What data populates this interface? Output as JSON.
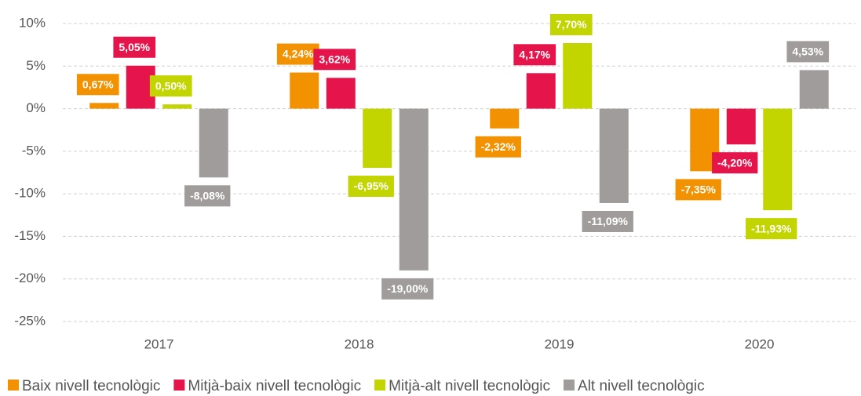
{
  "chart_data": {
    "type": "bar",
    "categories": [
      "2017",
      "2018",
      "2019",
      "2020"
    ],
    "series": [
      {
        "name": "Baix nivell tecnològic",
        "color": "#f39200",
        "values": [
          0.67,
          4.24,
          -2.32,
          -7.35
        ],
        "value_labels": [
          "0,67%",
          "4,24%",
          "-2,32%",
          "-7,35%"
        ]
      },
      {
        "name": "Mitjà-baix nivell tecnològic",
        "color": "#e5154b",
        "values": [
          5.05,
          3.62,
          4.17,
          -4.2
        ],
        "value_labels": [
          "5,05%",
          "3,62%",
          "4,17%",
          "-4,20%"
        ]
      },
      {
        "name": "Mitjà-alt nivell tecnològic",
        "color": "#c2d500",
        "values": [
          0.5,
          -6.95,
          7.7,
          -11.93
        ],
        "value_labels": [
          "0,50%",
          "-6,95%",
          "7,70%",
          "-11,93%"
        ]
      },
      {
        "name": "Alt nivell tecnològic",
        "color": "#a19c9c",
        "values": [
          -8.08,
          -19.0,
          -11.09,
          4.53
        ],
        "value_labels": [
          "-8,08%",
          "-19,00%",
          "-11,09%",
          "4,53%"
        ]
      }
    ],
    "ylim": [
      -25,
      10
    ],
    "yticks": [
      {
        "value": -25,
        "label": "-25%"
      },
      {
        "value": -20,
        "label": "-20%"
      },
      {
        "value": -15,
        "label": "-15%"
      },
      {
        "value": -10,
        "label": "-10%"
      },
      {
        "value": -5,
        "label": "-5%"
      },
      {
        "value": 0,
        "label": "0%"
      },
      {
        "value": 5,
        "label": "5%"
      },
      {
        "value": 10,
        "label": "10%"
      }
    ],
    "grid": true,
    "legend": "bottom"
  }
}
